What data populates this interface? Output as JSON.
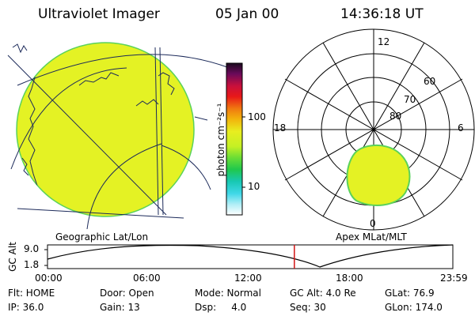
{
  "header": {
    "title": "Ultraviolet Imager",
    "date": "05 Jan 00",
    "time": "14:36:18 UT"
  },
  "left_panel": {
    "caption": "Geographic Lat/Lon"
  },
  "right_panel": {
    "caption": "Apex  MLat/MLT",
    "mlt_labels": [
      "12",
      "18",
      "6",
      "0"
    ],
    "lat_labels": [
      "60",
      "70",
      "80"
    ]
  },
  "colorbar": {
    "unit_label": "photon cm⁻²s⁻¹",
    "ticks": [
      "100",
      "10"
    ]
  },
  "altitude_plot": {
    "ylabel": "GC Alt",
    "y_ticks": [
      "9.0",
      "1.8"
    ],
    "x_ticks": [
      "00:00",
      "06:00",
      "12:00",
      "18:00",
      "23:59"
    ],
    "current_time_fraction": 0.609
  },
  "status": {
    "flt": "Flt: HOME",
    "door": "Door: Open",
    "mode": "Mode: Normal",
    "gc_alt": "GC Alt: 4.0 Re",
    "glat": "GLat:  76.9",
    "ip": "IP: 36.0",
    "gain": "Gain: 13",
    "dsp": "Dsp:     4.0",
    "seq": "Seq: 30",
    "glon": "GLon: 174.0"
  },
  "colors": {
    "aurora_fill": "#e4f224",
    "aurora_edge": "#5ad25a",
    "marker": "#d21414"
  }
}
